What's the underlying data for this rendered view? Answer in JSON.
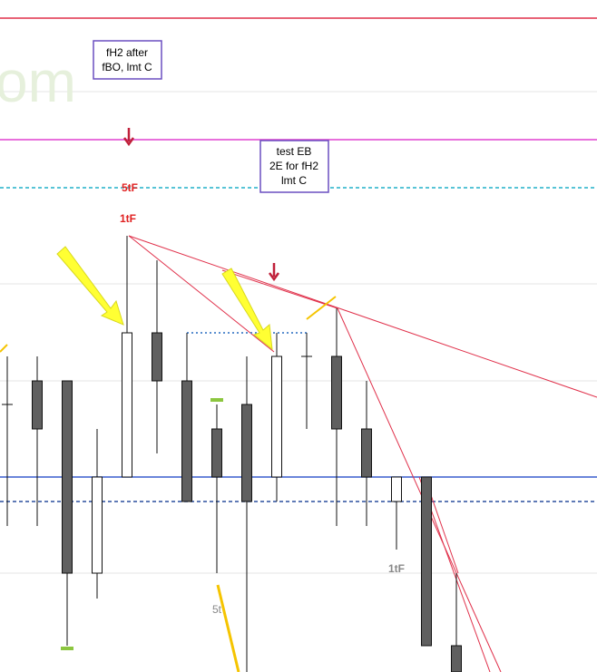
{
  "chart_data": {
    "type": "candlestick",
    "watermark": "om",
    "ylim": [
      0,
      741
    ],
    "categories": [
      null,
      null,
      null,
      null,
      null,
      null,
      null,
      null,
      null,
      null,
      null,
      null,
      null,
      null,
      null,
      null
    ],
    "open": [
      295,
      321,
      321,
      109,
      215,
      374,
      321,
      268,
      295,
      215,
      348,
      348,
      268,
      188,
      215,
      29
    ],
    "high": [
      348,
      348,
      321,
      268,
      481,
      454,
      374,
      295,
      348,
      374,
      374,
      401,
      321,
      215,
      215,
      109
    ],
    "low": [
      161,
      161,
      29,
      81,
      215,
      241,
      188,
      109,
      0,
      188,
      268,
      161,
      161,
      135,
      29,
      0
    ],
    "close": [
      295,
      268,
      109,
      215,
      374,
      321,
      188,
      215,
      188,
      348,
      348,
      268,
      215,
      215,
      29,
      0
    ],
    "up_color": "#ffffff",
    "down_color": "#606060",
    "levels": [
      {
        "value": 721,
        "color": "#e0304a",
        "dashed": false
      },
      {
        "value": 587,
        "color": "#e040d0",
        "dashed": false
      },
      {
        "value": 534,
        "color": "#20b0c8",
        "dashed": true
      },
      {
        "value": 215,
        "color": "#3a5fcd",
        "dashed": false
      },
      {
        "value": 188,
        "color": "#2a4f9d",
        "dashed": true
      }
    ],
    "annotations": [
      {
        "lines": [
          "fH2 after",
          "fBO, lmt C"
        ]
      },
      {
        "lines": [
          "test EB",
          "2E for fH2",
          "lmt C"
        ]
      }
    ],
    "labels": [
      "5tF",
      "1tF",
      "1tF",
      "5t"
    ]
  }
}
